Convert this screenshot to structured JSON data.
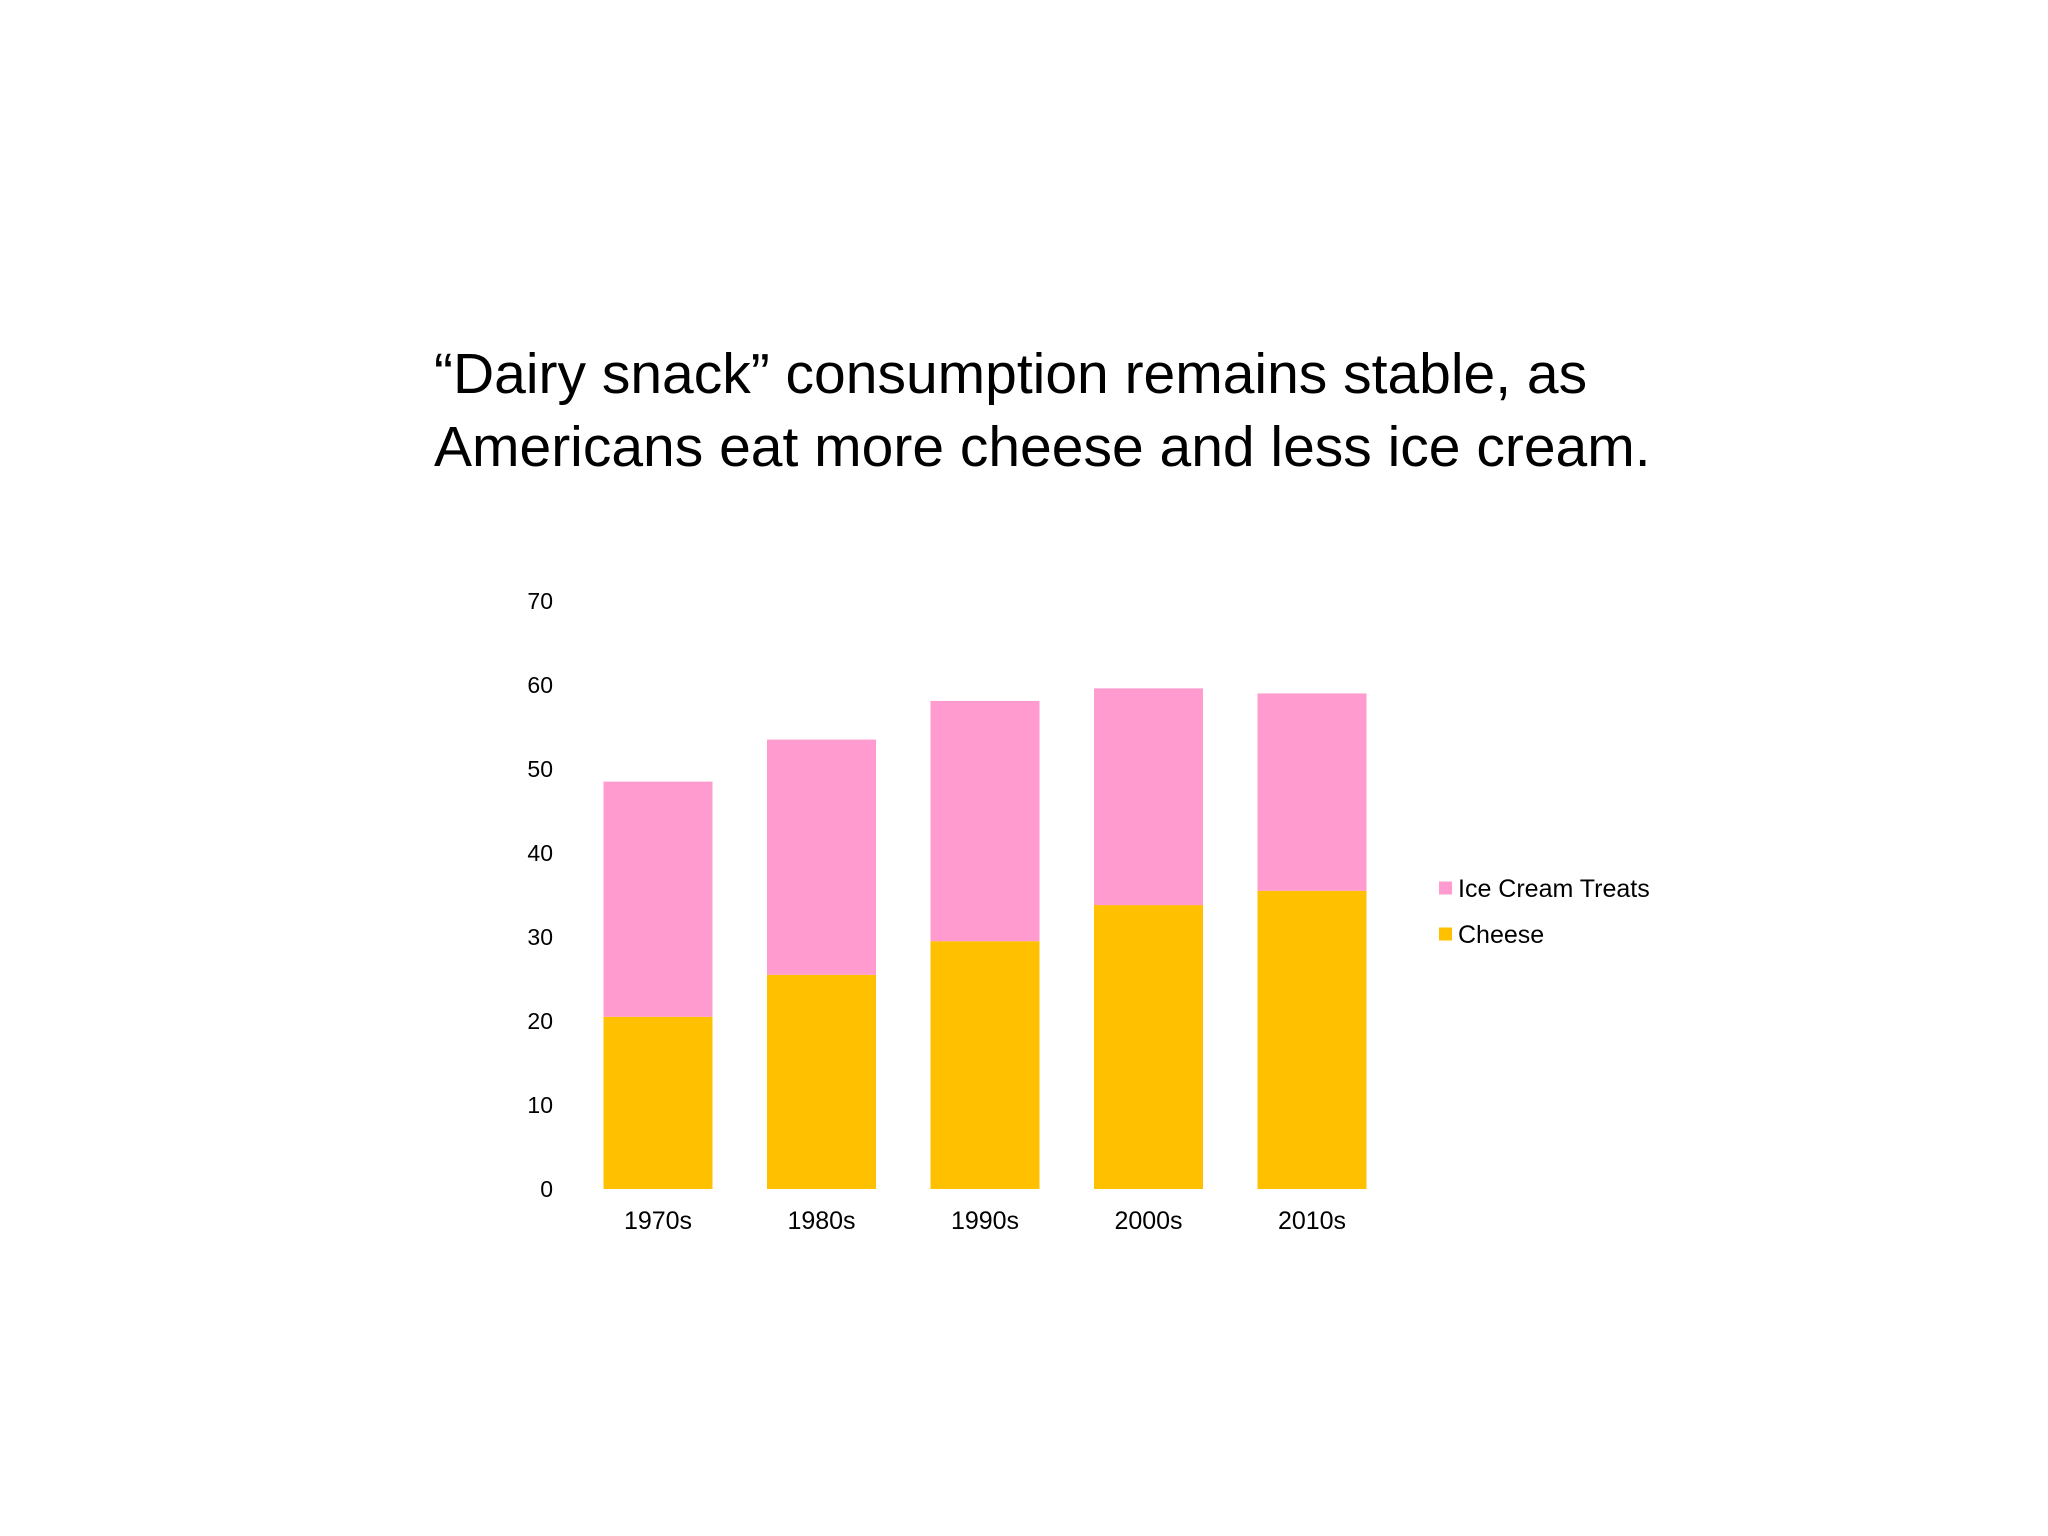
{
  "slide": {
    "title_lines": [
      "“Dairy snack” consumption remains stable, as",
      "Americans eat more cheese and less ice cream."
    ]
  },
  "chart_data": {
    "type": "bar",
    "stacked": true,
    "title": "“Dairy snack” consumption remains stable, as Americans eat more cheese and less ice cream.",
    "xlabel": "",
    "ylabel": "",
    "categories": [
      "1970s",
      "1980s",
      "1990s",
      "2000s",
      "2010s"
    ],
    "series": [
      {
        "name": "Cheese",
        "values": [
          20.5,
          25.5,
          29.5,
          33.8,
          35.5
        ],
        "color": "#FFC000"
      },
      {
        "name": "Ice Cream Treats",
        "values": [
          28.0,
          28.0,
          28.6,
          25.8,
          23.5
        ],
        "color": "#FF9BCF"
      }
    ],
    "ylim": [
      0,
      70
    ],
    "yticks": [
      0,
      10,
      20,
      30,
      40,
      50,
      60,
      70
    ],
    "grid": false,
    "legend": {
      "position": "right",
      "order": [
        "Ice Cream Treats",
        "Cheese"
      ]
    }
  }
}
